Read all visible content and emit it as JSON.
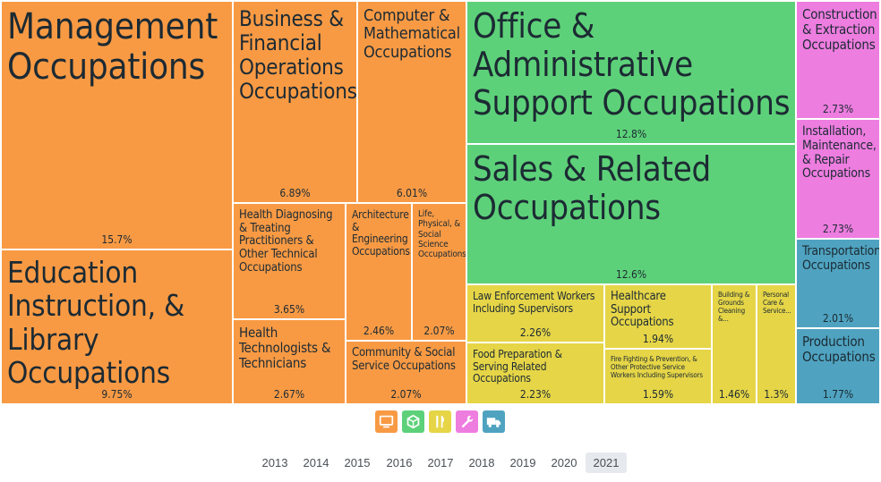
{
  "chart_data": {
    "type": "treemap",
    "title": "",
    "unit": "%",
    "groups": [
      {
        "category": "professional",
        "color": "#f89a44",
        "items": [
          {
            "name": "Management Occupations",
            "value": 15.7
          },
          {
            "name": "Education Instruction, & Library Occupations",
            "value": 9.75
          },
          {
            "name": "Business & Financial Operations Occupations",
            "value": 6.89
          },
          {
            "name": "Computer & Mathematical Occupations",
            "value": 6.01
          },
          {
            "name": "Health Diagnosing & Treating Practitioners & Other Technical Occupations",
            "value": 3.65
          },
          {
            "name": "Architecture & Engineering Occupations",
            "value": 2.46
          },
          {
            "name": "Life, Physical, & Social Science Occupations",
            "value": 2.07
          },
          {
            "name": "Health Technologists & Technicians",
            "value": 2.67
          },
          {
            "name": "Community & Social Service Occupations",
            "value": 2.07
          }
        ]
      },
      {
        "category": "sales-office",
        "color": "#5dd179",
        "items": [
          {
            "name": "Office & Administrative Support Occupations",
            "value": 12.8
          },
          {
            "name": "Sales & Related Occupations",
            "value": 12.6
          }
        ]
      },
      {
        "category": "service",
        "color": "#e6d547",
        "items": [
          {
            "name": "Law Enforcement Workers Including Supervisors",
            "value": 2.26
          },
          {
            "name": "Food Preparation & Serving Related Occupations",
            "value": 2.23
          },
          {
            "name": "Healthcare Support Occupations",
            "value": 1.94
          },
          {
            "name": "Fire Fighting & Prevention, & Other Protective Service Workers Including Supervisors",
            "value": 1.59
          },
          {
            "name": "Building & Grounds Cleaning &...",
            "value": 1.46
          },
          {
            "name": "Personal Care & Service...",
            "value": 1.3
          }
        ]
      },
      {
        "category": "construction-maintenance",
        "color": "#ee7de0",
        "items": [
          {
            "name": "Construction & Extraction Occupations",
            "value": 2.73
          },
          {
            "name": "Installation, Maintenance, & Repair Occupations",
            "value": 2.73
          }
        ]
      },
      {
        "category": "transport-production",
        "color": "#4fa3c0",
        "items": [
          {
            "name": "Transportation Occupations",
            "value": 2.01
          },
          {
            "name": "Production Occupations",
            "value": 1.77
          }
        ]
      }
    ]
  },
  "legend": [
    {
      "icon": "monitor-icon",
      "color": "#f89a44"
    },
    {
      "icon": "cube-icon",
      "color": "#5dd179"
    },
    {
      "icon": "utensils-icon",
      "color": "#e6d547"
    },
    {
      "icon": "wrench-icon",
      "color": "#ee7de0"
    },
    {
      "icon": "truck-icon",
      "color": "#4fa3c0"
    }
  ],
  "years": [
    "2013",
    "2014",
    "2015",
    "2016",
    "2017",
    "2018",
    "2019",
    "2020",
    "2021"
  ],
  "selected_year": "2021"
}
